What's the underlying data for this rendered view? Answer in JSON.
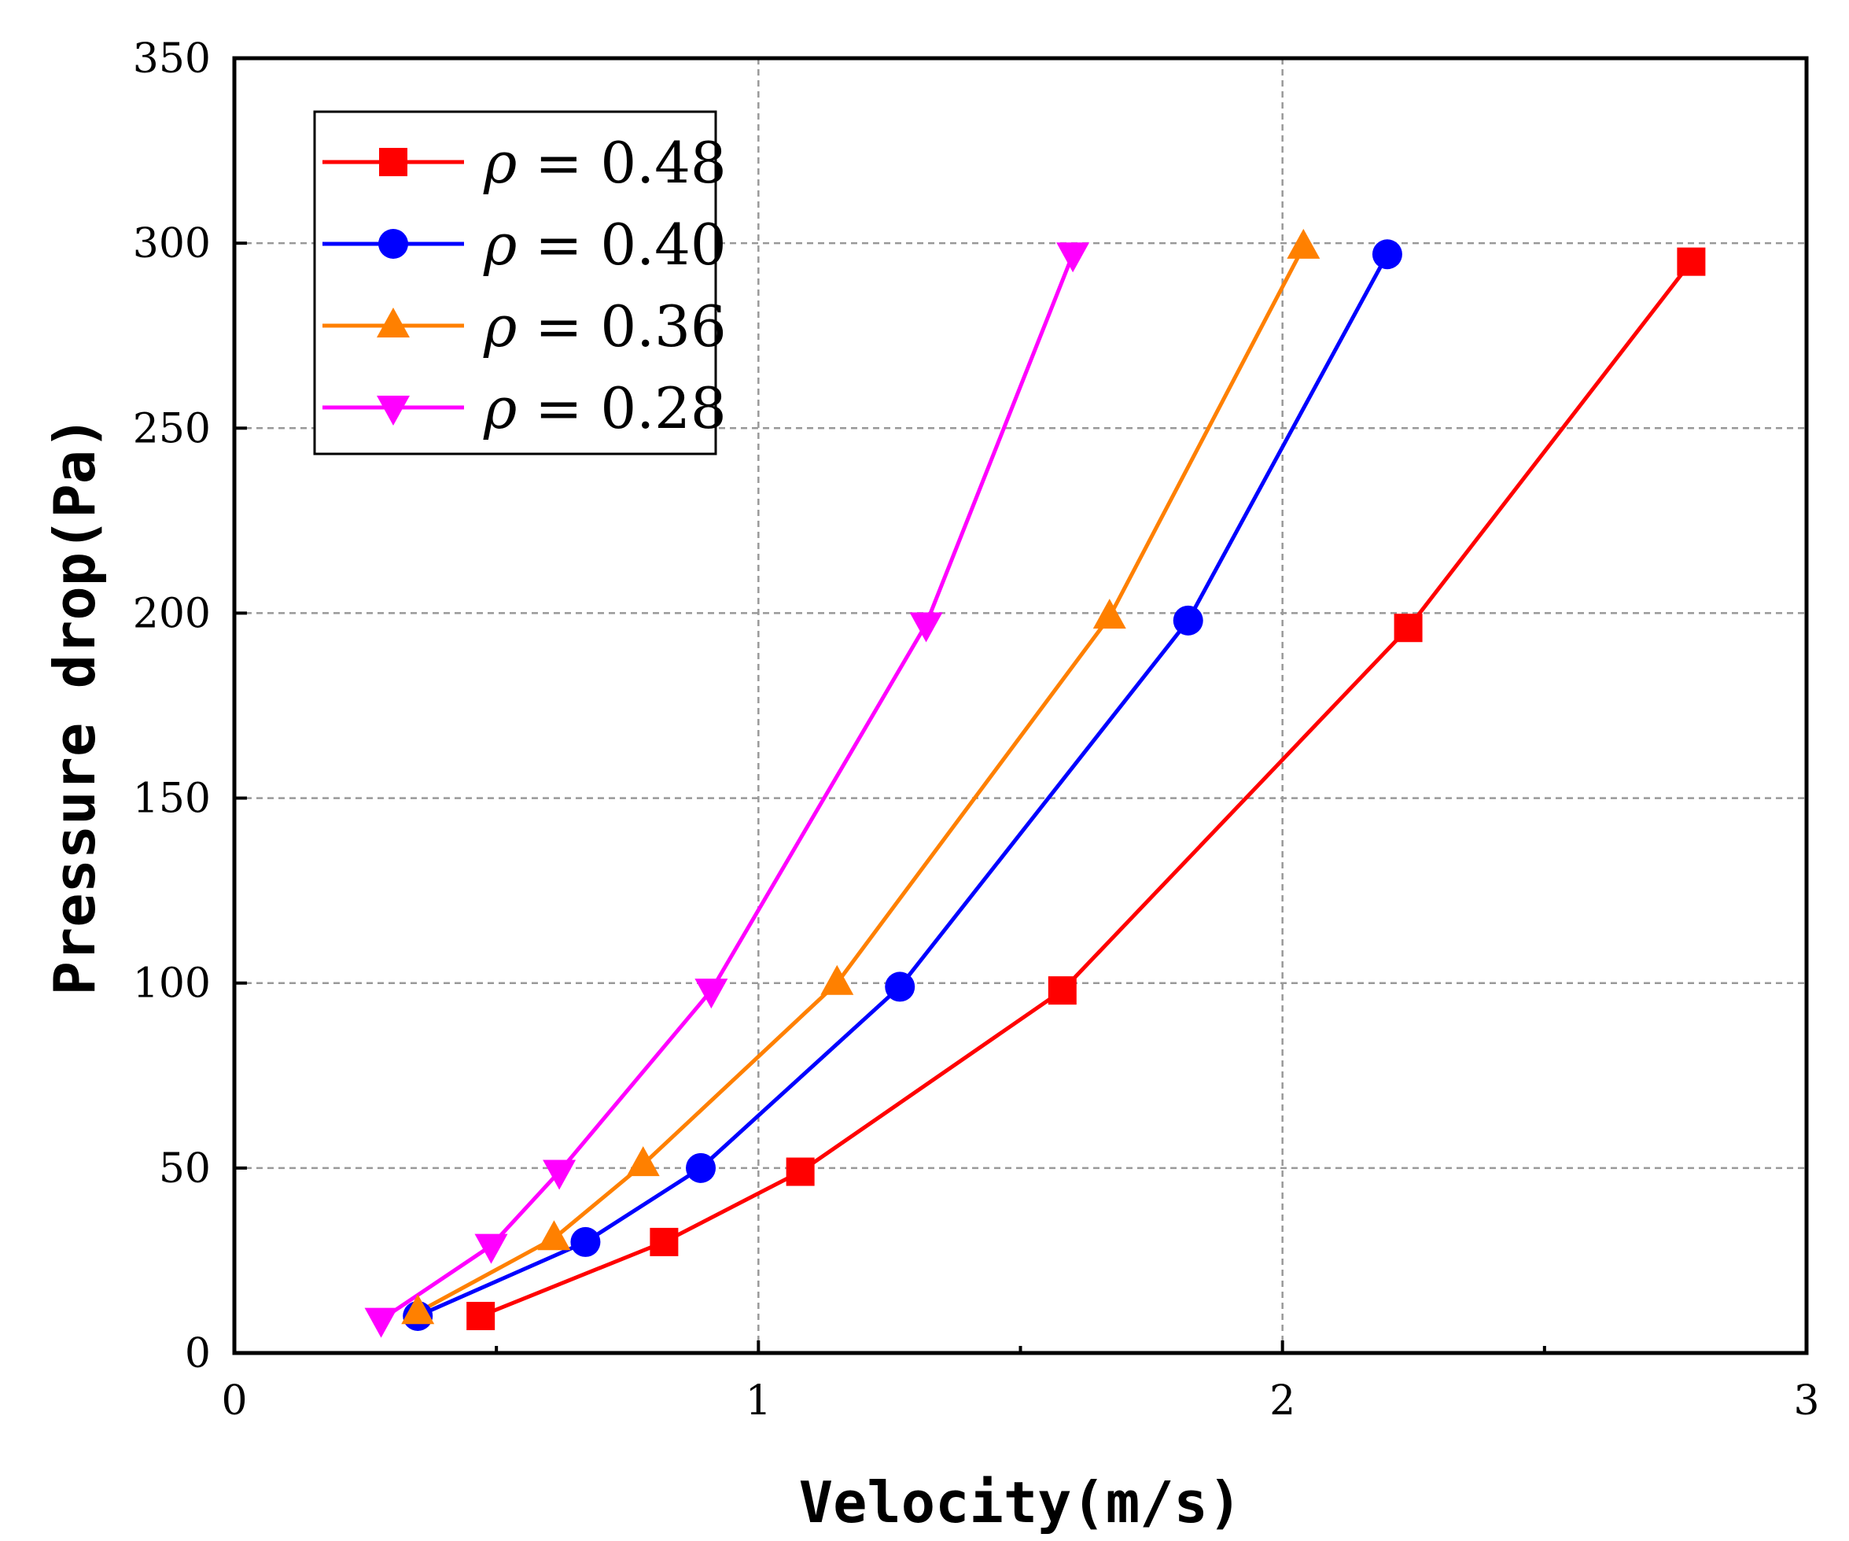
{
  "chart_data": {
    "type": "line",
    "xlabel": "Velocity(m/s)",
    "ylabel": "Pressure drop(Pa)",
    "xlim": [
      0,
      3
    ],
    "ylim": [
      0,
      350
    ],
    "x_ticks": [
      0,
      1,
      2,
      3
    ],
    "x_minor_ticks": [
      0.5,
      1.5,
      2.5
    ],
    "y_ticks": [
      0,
      50,
      100,
      150,
      200,
      250,
      300,
      350
    ],
    "grid": "dashed gray lines at x = 1, 2 and y = 50 to 300",
    "legend_position": "top-left",
    "series": [
      {
        "name": "ρ = 0.48",
        "symbol": "ρ",
        "value_text": " = 0.48",
        "color": "#ff0000",
        "marker": "square",
        "x": [
          0.47,
          0.82,
          1.08,
          1.58,
          2.24,
          2.78
        ],
        "y": [
          10,
          30,
          49,
          98,
          196,
          295
        ]
      },
      {
        "name": "ρ = 0.40",
        "symbol": "ρ",
        "value_text": " = 0.40",
        "color": "#0000ff",
        "marker": "circle",
        "x": [
          0.35,
          0.67,
          0.89,
          1.27,
          1.82,
          2.2
        ],
        "y": [
          10,
          30,
          50,
          99,
          198,
          297
        ]
      },
      {
        "name": "ρ = 0.36",
        "symbol": "ρ",
        "value_text": " = 0.36",
        "color": "#ff8000",
        "marker": "triangle-up",
        "x": [
          0.35,
          0.61,
          0.78,
          1.15,
          1.67,
          2.04
        ],
        "y": [
          11,
          31,
          51,
          100,
          199,
          299
        ]
      },
      {
        "name": "ρ = 0.28",
        "symbol": "ρ",
        "value_text": " = 0.28",
        "color": "#ff00ff",
        "marker": "triangle-down",
        "x": [
          0.28,
          0.49,
          0.62,
          0.91,
          1.32,
          1.6
        ],
        "y": [
          9,
          29,
          49,
          98,
          197,
          297
        ]
      }
    ]
  }
}
